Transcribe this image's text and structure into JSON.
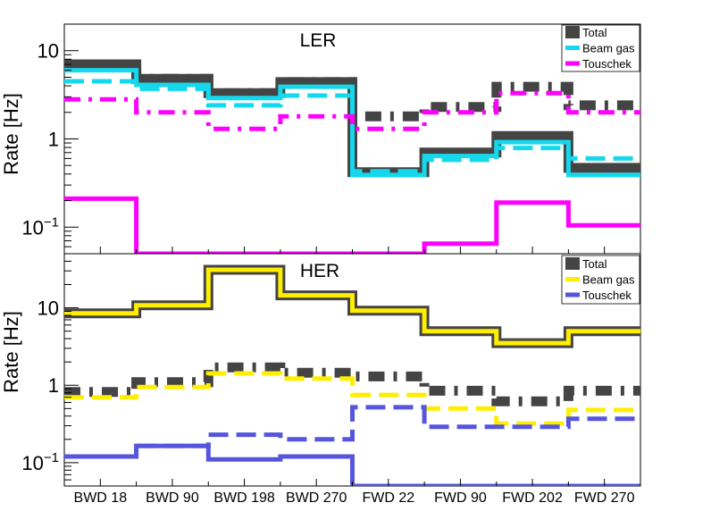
{
  "chart_data": [
    {
      "type": "line",
      "title": "LER",
      "ylabel": "Rate [Hz]",
      "yscale": "log",
      "ylim": [
        0.05,
        20
      ],
      "yticks": [
        {
          "v": 0.1,
          "base": "10",
          "exp": "−1"
        },
        {
          "v": 1,
          "label": "1"
        },
        {
          "v": 10,
          "label": "10"
        }
      ],
      "categories": [
        "BWD 18",
        "BWD 90",
        "BWD 198",
        "BWD 270",
        "FWD 22",
        "FWD 90",
        "FWD 202",
        "FWD 270"
      ],
      "legend": {
        "placement": "top-right",
        "entries": [
          {
            "label": "Total",
            "color": "#444444",
            "symbol": "box"
          },
          {
            "label": "Beam gas",
            "color": "#15d8ec",
            "symbol": "line"
          },
          {
            "label": "Touschek",
            "color": "#ff00ff",
            "symbol": "line"
          }
        ]
      },
      "series": [
        {
          "color": "#444444",
          "style": "solid",
          "width": 11,
          "values": [
            7,
            4.8,
            3.3,
            4.4,
            0.42,
            0.7,
            1.08,
            0.47
          ]
        },
        {
          "color": "#444444",
          "style": "dashdot",
          "width": 11,
          "values": [
            7,
            4.8,
            3.3,
            4.4,
            1.8,
            2.3,
            3.9,
            2.4
          ]
        },
        {
          "color": "#15d8ec",
          "style": "solid",
          "width": 5,
          "values": [
            6,
            4.1,
            2.9,
            3.9,
            0.39,
            0.64,
            0.92,
            0.39
          ]
        },
        {
          "color": "#15d8ec",
          "style": "dashed",
          "width": 5,
          "values": [
            4.5,
            3.7,
            2.4,
            3.1,
            0.43,
            0.58,
            0.79,
            0.6
          ]
        },
        {
          "color": "#ff00ff",
          "style": "solid",
          "width": 5,
          "values": [
            0.21,
            0.05,
            0.05,
            0.05,
            0.05,
            0.065,
            0.19,
            0.105
          ]
        },
        {
          "color": "#ff00ff",
          "style": "dashdot",
          "width": 5,
          "values": [
            2.8,
            2.0,
            1.3,
            1.8,
            1.3,
            2.0,
            3.3,
            2.0
          ]
        }
      ]
    },
    {
      "type": "line",
      "title": "HER",
      "ylabel": "Rate [Hz]",
      "yscale": "log",
      "ylim": [
        0.05,
        50
      ],
      "yticks": [
        {
          "v": 0.1,
          "base": "10",
          "exp": "−1"
        },
        {
          "v": 1,
          "label": "1"
        },
        {
          "v": 10,
          "label": "10"
        }
      ],
      "categories": [
        "BWD 18",
        "BWD 90",
        "BWD 198",
        "BWD 270",
        "FWD 22",
        "FWD 90",
        "FWD 202",
        "FWD 270"
      ],
      "legend": {
        "placement": "top-right",
        "entries": [
          {
            "label": "Total",
            "color": "#444444",
            "symbol": "box"
          },
          {
            "label": "Beam gas",
            "color": "#ffee00",
            "symbol": "line"
          },
          {
            "label": "Touschek",
            "color": "#5555dd",
            "symbol": "line"
          }
        ]
      },
      "series": [
        {
          "color": "#444444",
          "style": "solid",
          "width": 11,
          "values": [
            8.5,
            10.8,
            31,
            14.5,
            9.2,
            5.0,
            3.5,
            5.0
          ]
        },
        {
          "color": "#444444",
          "style": "dashdot",
          "width": 11,
          "values": [
            0.82,
            1.1,
            1.7,
            1.45,
            1.3,
            0.85,
            0.62,
            0.85
          ]
        },
        {
          "color": "#ffee00",
          "style": "solid",
          "width": 5,
          "values": [
            8.5,
            10.8,
            31,
            14.5,
            9.2,
            5.0,
            3.5,
            5.0
          ]
        },
        {
          "color": "#ffee00",
          "style": "dashed",
          "width": 5,
          "values": [
            0.7,
            0.95,
            1.42,
            1.22,
            0.75,
            0.5,
            0.32,
            0.48
          ]
        },
        {
          "color": "#5555dd",
          "style": "solid",
          "width": 5,
          "values": [
            0.12,
            0.165,
            0.11,
            0.12,
            0.05,
            0.05,
            0.05,
            0.05
          ]
        },
        {
          "color": "#5555dd",
          "style": "dashed",
          "width": 5,
          "values": [
            0.12,
            0.165,
            0.23,
            0.2,
            0.52,
            0.29,
            0.29,
            0.37
          ]
        }
      ]
    }
  ]
}
